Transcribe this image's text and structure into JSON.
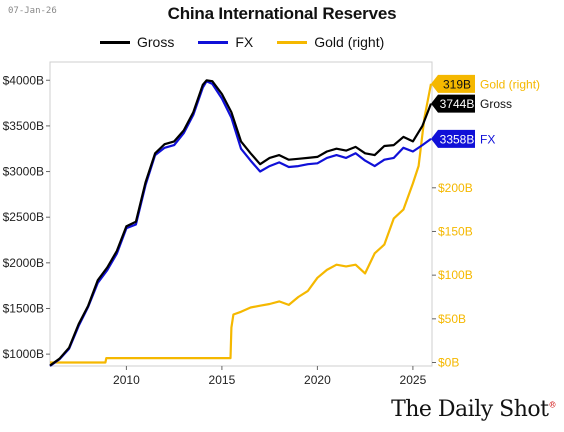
{
  "header": {
    "date": "07-Jan-26",
    "brand": "The Daily Shot",
    "brand_mark": "®"
  },
  "chart_data": {
    "type": "line",
    "title": "China International Reserves",
    "x_ticks": [
      2010,
      2015,
      2020,
      2025
    ],
    "xlim": [
      2006.0,
      2026.0
    ],
    "y_left": {
      "ticks": [
        1000,
        1500,
        2000,
        2500,
        3000,
        3500,
        4000
      ],
      "tick_labels": [
        "$1000B",
        "$1500B",
        "$2000B",
        "$2500B",
        "$3000B",
        "$3500B",
        "$4000B"
      ],
      "ylim": [
        870,
        4200
      ]
    },
    "y_right": {
      "ticks": [
        0,
        50,
        100,
        150,
        200
      ],
      "tick_labels": [
        "$0B",
        "$50B",
        "$100B",
        "$150B",
        "$200B"
      ],
      "ylim": [
        -4,
        344
      ]
    },
    "series": [
      {
        "name": "Gross",
        "color": "#000000",
        "axis": "left",
        "x": [
          2006.0,
          2006.5,
          2007.0,
          2007.5,
          2008.0,
          2008.5,
          2009.0,
          2009.5,
          2010.0,
          2010.5,
          2011.0,
          2011.5,
          2012.0,
          2012.5,
          2013.0,
          2013.5,
          2014.0,
          2014.2,
          2014.5,
          2015.0,
          2015.5,
          2016.0,
          2016.5,
          2017.0,
          2017.5,
          2018.0,
          2018.5,
          2019.0,
          2019.5,
          2020.0,
          2020.5,
          2021.0,
          2021.5,
          2022.0,
          2022.5,
          2023.0,
          2023.5,
          2024.0,
          2024.5,
          2025.0,
          2025.5,
          2025.95
        ],
        "values": [
          875,
          950,
          1070,
          1330,
          1530,
          1810,
          1950,
          2130,
          2400,
          2450,
          2880,
          3200,
          3300,
          3330,
          3450,
          3650,
          3950,
          4000,
          3990,
          3850,
          3650,
          3330,
          3200,
          3080,
          3150,
          3180,
          3130,
          3140,
          3150,
          3160,
          3220,
          3250,
          3230,
          3270,
          3200,
          3180,
          3280,
          3290,
          3380,
          3330,
          3500,
          3744
        ]
      },
      {
        "name": "FX",
        "color": "#1010d8",
        "axis": "left",
        "x": [
          2006.0,
          2006.5,
          2007.0,
          2007.5,
          2008.0,
          2008.5,
          2009.0,
          2009.5,
          2010.0,
          2010.5,
          2011.0,
          2011.5,
          2012.0,
          2012.5,
          2013.0,
          2013.5,
          2014.0,
          2014.2,
          2014.5,
          2015.0,
          2015.5,
          2016.0,
          2016.5,
          2017.0,
          2017.5,
          2018.0,
          2018.5,
          2019.0,
          2019.5,
          2020.0,
          2020.5,
          2021.0,
          2021.5,
          2022.0,
          2022.5,
          2023.0,
          2023.5,
          2024.0,
          2024.5,
          2025.0,
          2025.5,
          2025.95
        ],
        "values": [
          870,
          945,
          1060,
          1310,
          1520,
          1780,
          1920,
          2100,
          2380,
          2420,
          2850,
          3180,
          3260,
          3290,
          3420,
          3620,
          3920,
          3990,
          3960,
          3800,
          3590,
          3250,
          3120,
          3000,
          3060,
          3100,
          3050,
          3060,
          3080,
          3090,
          3150,
          3180,
          3150,
          3200,
          3120,
          3060,
          3130,
          3150,
          3260,
          3220,
          3290,
          3358
        ]
      },
      {
        "name": "Gold (right)",
        "color": "#f5b800",
        "axis": "right",
        "x": [
          2006.0,
          2008.9,
          2008.95,
          2015.45,
          2015.5,
          2015.6,
          2016.0,
          2016.5,
          2017.0,
          2017.5,
          2018.0,
          2018.5,
          2019.0,
          2019.5,
          2020.0,
          2020.5,
          2021.0,
          2021.5,
          2022.0,
          2022.5,
          2023.0,
          2023.5,
          2024.0,
          2024.5,
          2025.0,
          2025.3,
          2025.6,
          2025.95
        ],
        "values": [
          0,
          0,
          5,
          5,
          40,
          55,
          58,
          63,
          65,
          67,
          70,
          66,
          75,
          82,
          97,
          106,
          112,
          110,
          112,
          102,
          125,
          135,
          165,
          175,
          205,
          225,
          280,
          319
        ]
      }
    ],
    "end_labels": [
      {
        "value": "319B",
        "name": "Gold (right)",
        "axis": "right",
        "y": 319,
        "bg": "#f5b800",
        "fg": "#111111",
        "name_color": "#f5b800"
      },
      {
        "value": "3744B",
        "name": "Gross",
        "axis": "left",
        "y": 3744,
        "bg": "#000000",
        "fg": "#ffffff",
        "name_color": "#111111"
      },
      {
        "value": "3358B",
        "name": "FX",
        "axis": "left",
        "y": 3358,
        "bg": "#1010d8",
        "fg": "#ffffff",
        "name_color": "#1010d8"
      }
    ]
  }
}
